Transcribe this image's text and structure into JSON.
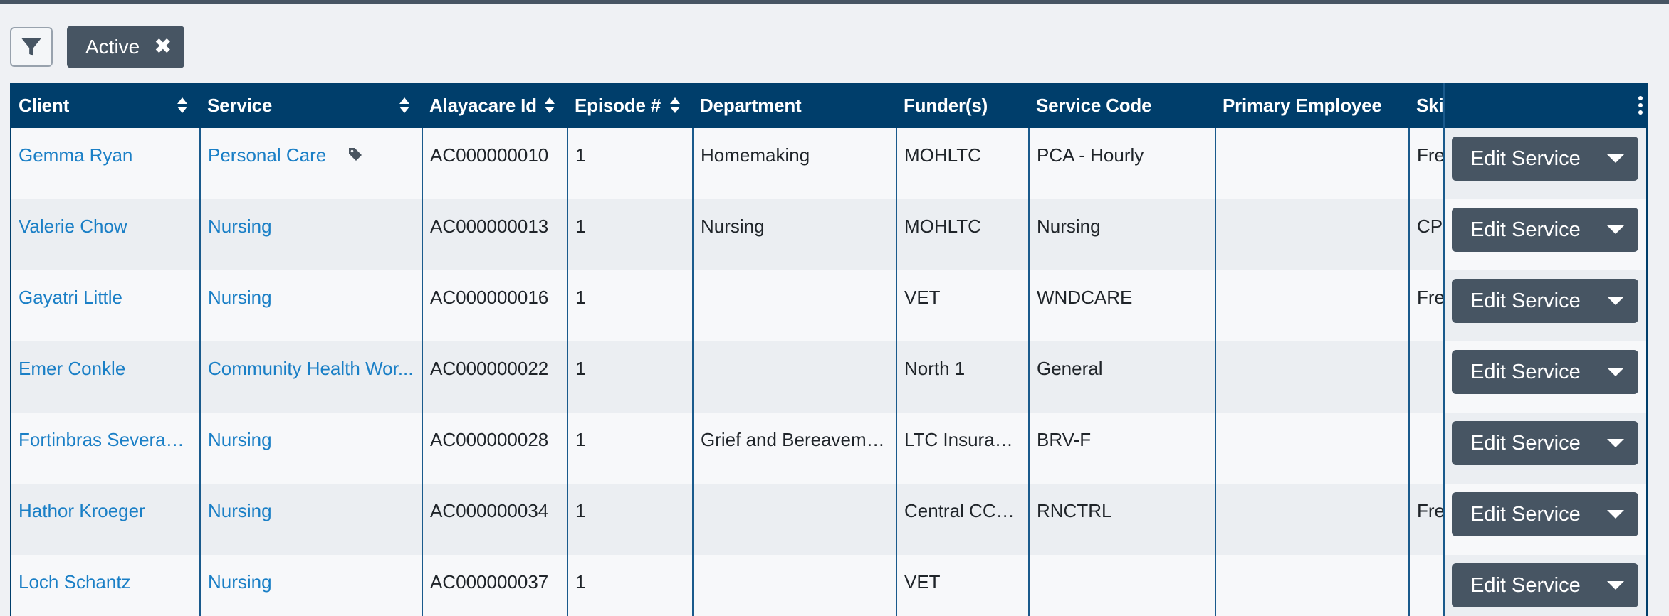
{
  "filters": {
    "active_chip_label": "Active"
  },
  "table": {
    "columns": [
      {
        "label": "Client"
      },
      {
        "label": "Service"
      },
      {
        "label": "Alayacare Id"
      },
      {
        "label": "Episode #"
      },
      {
        "label": "Department"
      },
      {
        "label": "Funder(s)"
      },
      {
        "label": "Service Code"
      },
      {
        "label": "Primary Employee"
      },
      {
        "label": "Skil"
      }
    ],
    "rows": [
      {
        "client": "Gemma Ryan",
        "service": "Personal Care",
        "alayacare_id": "AC000000010",
        "episode": "1",
        "department": "Homemaking",
        "funders": "MOHLTC",
        "service_code": "PCA - Hourly",
        "primary_employee": "",
        "skills": "Fre"
      },
      {
        "client": "Valerie Chow",
        "service": "Nursing",
        "alayacare_id": "AC000000013",
        "episode": "1",
        "department": "Nursing",
        "funders": "MOHLTC",
        "service_code": "Nursing",
        "primary_employee": "",
        "skills": "CPI"
      },
      {
        "client": "Gayatri Little",
        "service": "Nursing",
        "alayacare_id": "AC000000016",
        "episode": "1",
        "department": "",
        "funders": "VET",
        "service_code": "WNDCARE",
        "primary_employee": "",
        "skills": "Fre"
      },
      {
        "client": "Emer Conkle",
        "service": "Community Health Wor...",
        "alayacare_id": "AC000000022",
        "episode": "1",
        "department": "",
        "funders": "North 1",
        "service_code": "General",
        "primary_employee": "",
        "skills": ""
      },
      {
        "client": "Fortinbras Severance",
        "service": "Nursing",
        "alayacare_id": "AC000000028",
        "episode": "1",
        "department": "Grief and Bereavement",
        "funders": "LTC Insurance",
        "service_code": "BRV-F",
        "primary_employee": "",
        "skills": ""
      },
      {
        "client": "Hathor Kroeger",
        "service": "Nursing",
        "alayacare_id": "AC000000034",
        "episode": "1",
        "department": "",
        "funders": "Central CCAC",
        "service_code": "RNCTRL",
        "primary_employee": "",
        "skills": "Fre"
      },
      {
        "client": "Loch Schantz",
        "service": "Nursing",
        "alayacare_id": "AC000000037",
        "episode": "1",
        "department": "",
        "funders": "VET",
        "service_code": "",
        "primary_employee": "",
        "skills": ""
      }
    ],
    "row_action_label": "Edit Service"
  },
  "icons": {
    "filter": "filter-funnel-icon",
    "remove_chip": "close-x-icon",
    "tag": "tag-icon",
    "sort": "sort-arrows-icon",
    "column_menu": "kebab-vertical-icon",
    "dropdown": "caret-down-icon"
  },
  "colors": {
    "header_bg": "#003e6b",
    "link": "#1a7fc6",
    "button_bg": "#475563",
    "row_odd": "#f7f8fa",
    "row_even": "#ebeef2"
  }
}
